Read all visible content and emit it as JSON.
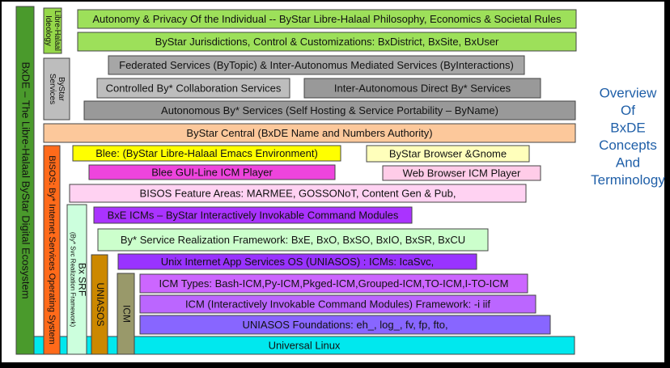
{
  "title": {
    "lines": [
      "Overview",
      "Of",
      "BxDE",
      "Concepts",
      "And",
      "Terminology"
    ]
  },
  "vertical_boxes": [
    {
      "lines": [
        "BxDE – The Libre-Halaal ByStar Digital Ecosystem"
      ]
    },
    {
      "lines": [
        "Libre-Halaal",
        "Ideology"
      ]
    },
    {
      "lines": [
        "ByStar",
        "Services"
      ]
    },
    {
      "lines": [
        "BISOS: By* Internet Services Operating System"
      ]
    },
    {
      "lines": [
        "Bx SRF",
        "(By* Svc Realization Framework)"
      ]
    },
    {
      "lines": [
        "UNIASOS"
      ]
    },
    {
      "lines": [
        "ICM"
      ]
    }
  ],
  "boxes": [
    {
      "label": "Autonomy & Privacy Of the Individual -- ByStar Libre-Halaal Philosophy, Economics & Societal Rules"
    },
    {
      "label": "ByStar Jurisdictions, Control & Customizations: BxDistrict, BxSite, BxUser"
    },
    {
      "label": "Federated Services (ByTopic) & Inter-Autonomus Mediated Services (ByInteractions)"
    },
    {
      "label": "Controlled By* Collaboration Services"
    },
    {
      "label": "Inter-Autonomous Direct By* Services"
    },
    {
      "label": "Autonomous By* Services (Self Hosting & Service Portability – ByName)"
    },
    {
      "label": "ByStar Central (BxDE Name and Numbers Authority)"
    },
    {
      "label": "Blee: (ByStar Libre-Halaal Emacs Environment)"
    },
    {
      "label": "ByStar Browser &Gnome"
    },
    {
      "label": "Blee GUI-Line ICM Player"
    },
    {
      "label": "Web Browser ICM  Player"
    },
    {
      "label": "BISOS Feature Areas: MARMEE, GOSSONoT, Content Gen & Pub,"
    },
    {
      "label": "BxE  ICMs – ByStar Interactively Invokable Command Modules"
    },
    {
      "label": "By* Service Realization Framework: BxE, BxO, BxSO, BxIO, BxSR, BxCU"
    },
    {
      "label": "Unix Internet App Services OS (UNIASOS) : ICMs: IcaSvc,"
    },
    {
      "label": "ICM Types: Bash-ICM,Py-ICM,Pkged-ICM,Grouped-ICM,TO-ICM,I-TO-ICM"
    },
    {
      "label": "ICM (Interactively Invokable Command Modules) Framework:  -i iif"
    },
    {
      "label": "UNIASOS Foundations: eh_, log_, fv, fp, fto,"
    },
    {
      "label": "Universal Linux"
    }
  ]
}
